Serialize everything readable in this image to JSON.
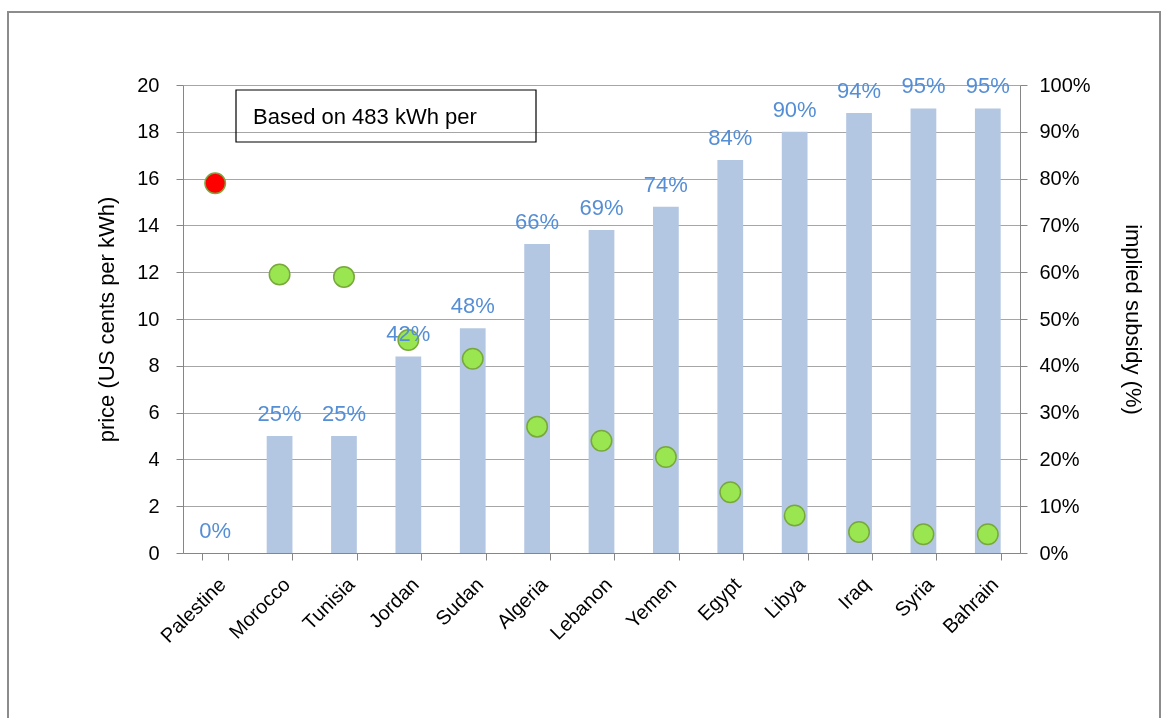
{
  "chart_data": {
    "type": "bar",
    "categories": [
      "Palestine",
      "Morocco",
      "Tunisia",
      "Jordan",
      "Sudan",
      "Algeria",
      "Lebanon",
      "Yemen",
      "Egypt",
      "Libya",
      "Iraq",
      "Syria",
      "Bahrain"
    ],
    "ylabel": "price  (US cents per kWh)",
    "y2label": "implied subsidy (%)",
    "ylim": [
      0,
      20
    ],
    "yticks": [
      0,
      2,
      4,
      6,
      8,
      10,
      12,
      14,
      16,
      18,
      20
    ],
    "y2lim": [
      0,
      100
    ],
    "y2ticks": [
      {
        "value": 0,
        "label": "0%"
      },
      {
        "value": 10,
        "label": "10%"
      },
      {
        "value": 20,
        "label": "20%"
      },
      {
        "value": 30,
        "label": "30%"
      },
      {
        "value": 40,
        "label": "40%"
      },
      {
        "value": 50,
        "label": "50%"
      },
      {
        "value": 60,
        "label": "60%"
      },
      {
        "value": 70,
        "label": "70%"
      },
      {
        "value": 80,
        "label": "80%"
      },
      {
        "value": 90,
        "label": "90%"
      },
      {
        "value": 100,
        "label": "100%"
      }
    ],
    "grid": "y",
    "annotations": [
      "Based on 483 kWh per"
    ],
    "series": [
      {
        "axis": "y2",
        "color": "#b4c7e2",
        "values": [
          0,
          25,
          25,
          42,
          48,
          66,
          69,
          74,
          84,
          90,
          94,
          95,
          95
        ],
        "value_labels": [
          "0%",
          "25%",
          "25%",
          "42%",
          "48%",
          "66%",
          "69%",
          "74%",
          "84%",
          "90%",
          "94%",
          "95%",
          "95%"
        ]
      },
      {
        "type": "scatter",
        "axis": "y",
        "marker": "circle",
        "colors": [
          "#ff0000",
          "#99e650",
          "#99e650",
          "#99e650",
          "#99e650",
          "#99e650",
          "#99e650",
          "#99e650",
          "#99e650",
          "#99e650",
          "#99e650",
          "#99e650",
          "#99e650"
        ],
        "values": [
          15.8,
          11.9,
          11.8,
          9.1,
          8.3,
          5.4,
          4.8,
          4.1,
          2.6,
          1.6,
          0.9,
          0.8,
          0.8
        ]
      }
    ]
  }
}
